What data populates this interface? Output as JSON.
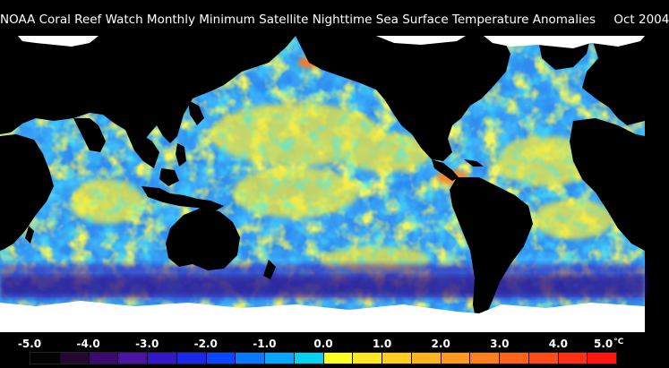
{
  "title": "NOAA Coral Reef Watch Monthly Minimum Satellite Nighttime Sea Surface Temperature Anomalies",
  "date": "Oct 2004",
  "legend": {
    "labels": [
      "-5.0",
      "-4.0",
      "-3.0",
      "-2.0",
      "-1.0",
      "0.0",
      "1.0",
      "2.0",
      "3.0",
      "4.0",
      "5.0"
    ],
    "unit": "°C",
    "colors": [
      "#000000",
      "#250832",
      "#3a0a6e",
      "#4a14a0",
      "#3318c8",
      "#1a28e8",
      "#0a46ff",
      "#0a78ff",
      "#08a6ff",
      "#0ad0f0",
      "#ffff28",
      "#ffe626",
      "#ffcc24",
      "#ffb222",
      "#ff9820",
      "#ff7e1e",
      "#ff641c",
      "#ff4a1a",
      "#ff3016",
      "#ff1410"
    ]
  },
  "map_colors": {
    "land": "#000000",
    "ice": "#ffffff",
    "ocean_base": "#2e8cf0"
  }
}
